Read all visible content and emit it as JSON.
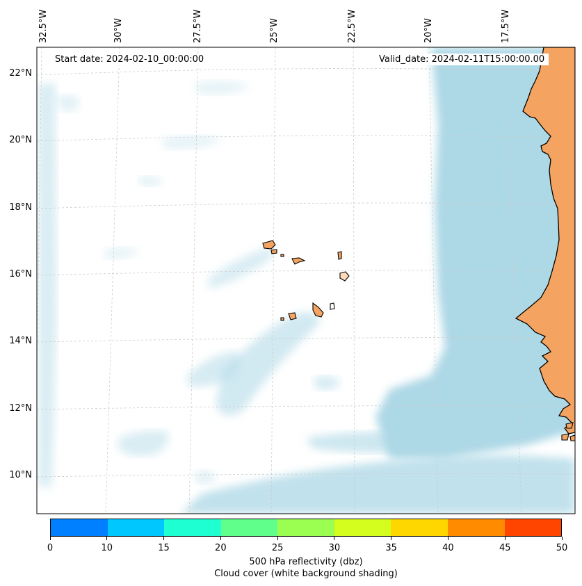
{
  "annotations": {
    "start_date": "Start date: 2024-02-10_00:00:00",
    "valid_date": "Valid_date: 2024-02-11T15:00:00.00"
  },
  "gridlines": {
    "longitude_labels": [
      "32.5°W",
      "30°W",
      "27.5°W",
      "25°W",
      "22.5°W",
      "20°W",
      "17.5°W"
    ],
    "latitude_labels": [
      "22°N",
      "20°N",
      "18°N",
      "16°N",
      "14°N",
      "12°N",
      "10°N"
    ]
  },
  "colorbar": {
    "ticks": [
      "0",
      "10",
      "15",
      "20",
      "25",
      "30",
      "35",
      "40",
      "45",
      "50"
    ],
    "colors": [
      "#0080ff",
      "#00c8ff",
      "#1effd2",
      "#60ff8c",
      "#9aff50",
      "#d4ff1e",
      "#ffd700",
      "#ff8c00",
      "#ff4500"
    ],
    "label": "500 hPa reflectivity (dbz)",
    "sublabel": "Cloud cover (white background shading)"
  },
  "map_colors": {
    "land": "#f4a460",
    "cloud": "#add8e6",
    "ocean": "#ffffff"
  }
}
